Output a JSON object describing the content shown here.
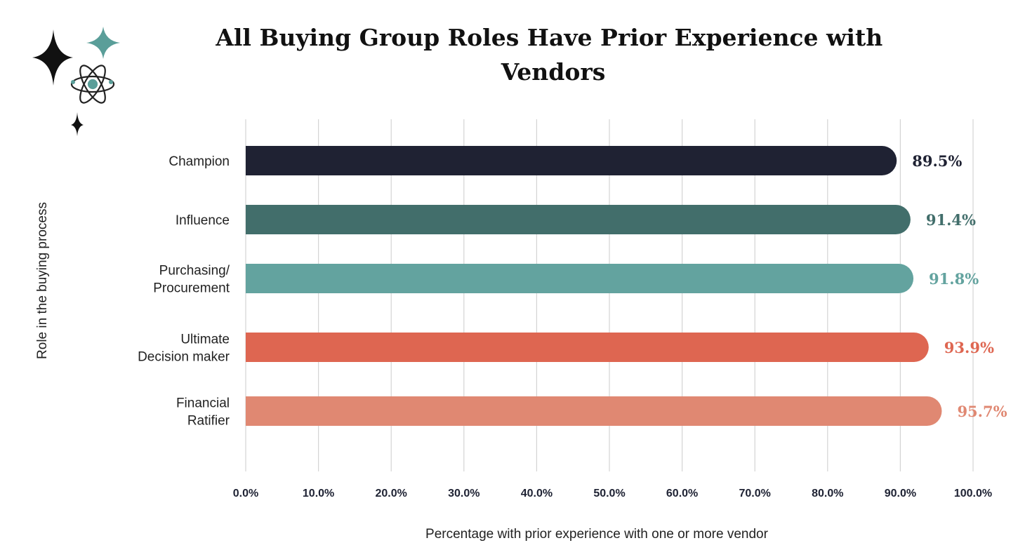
{
  "chart_data": {
    "type": "bar",
    "orientation": "horizontal",
    "title": "All Buying Group Roles Have Prior Experience with Vendors",
    "title_lines": [
      "All Buying Group Roles Have Prior Experience with",
      "Vendors"
    ],
    "xlabel": "Percentage with prior experience with one or more vendor",
    "ylabel": "Role in the buying process",
    "xlim": [
      0,
      100
    ],
    "xticks": [
      "0.0%",
      "10.0%",
      "20.0%",
      "30.0%",
      "40.0%",
      "50.0%",
      "60.0%",
      "70.0%",
      "80.0%",
      "90.0%",
      "100.0%"
    ],
    "grid": "vertical",
    "legend": "none",
    "categories": [
      [
        "Champion"
      ],
      [
        "Influence"
      ],
      [
        "Purchasing/",
        "Procurement"
      ],
      [
        "Ultimate",
        "Decision maker"
      ],
      [
        "Financial",
        "Ratifier"
      ]
    ],
    "values": [
      89.5,
      91.4,
      91.8,
      93.9,
      95.7
    ],
    "value_labels": [
      "89.5%",
      "91.4%",
      "91.8%",
      "93.9%",
      "95.7%"
    ],
    "colors": [
      "#1f2233",
      "#426e6b",
      "#63a39f",
      "#de6651",
      "#e08872"
    ]
  },
  "decoration": {
    "icon": "atom-with-sparkles-icon",
    "colors": [
      "#111111",
      "#5a9e99"
    ]
  }
}
